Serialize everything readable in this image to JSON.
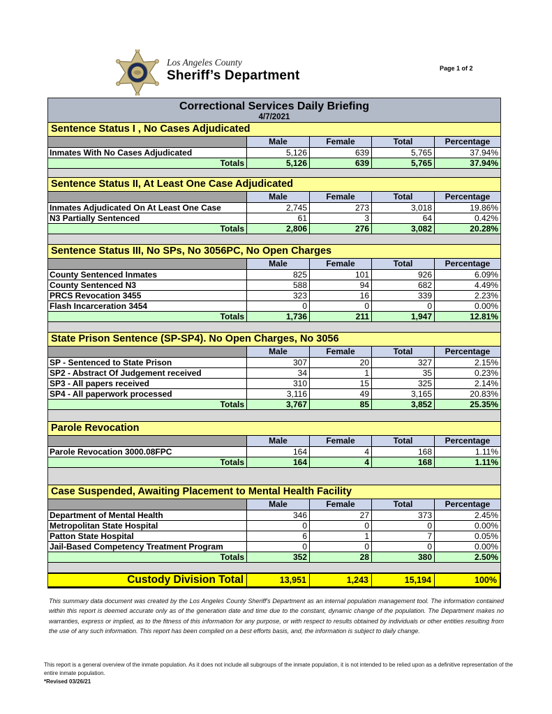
{
  "header": {
    "agency_line1": "Los Angeles County",
    "agency_line2": "Sheriff’s Department",
    "badge_icon": "sheriff-star-badge",
    "page_label": "Page 1 of 2"
  },
  "report": {
    "title": "Correctional Services Daily Briefing",
    "date": "4/7/2021",
    "columns": [
      "Male",
      "Female",
      "Total",
      "Percentage"
    ],
    "totals_label": "Totals",
    "sections": [
      {
        "title": "Sentence Status I , No Cases Adjudicated",
        "rows": [
          {
            "label": "Inmates With No Cases Adjudicated",
            "values": [
              "5,126",
              "639",
              "5,765",
              "37.94%"
            ]
          }
        ],
        "totals": [
          "5,126",
          "639",
          "5,765",
          "37.94%"
        ]
      },
      {
        "title": "Sentence Status II, At Least One Case Adjudicated",
        "rows": [
          {
            "label": "Inmates Adjudicated On At Least One Case",
            "values": [
              "2,745",
              "273",
              "3,018",
              "19.86%"
            ]
          },
          {
            "label": "N3 Partially Sentenced",
            "values": [
              "61",
              "3",
              "64",
              "0.42%"
            ]
          }
        ],
        "totals": [
          "2,806",
          "276",
          "3,082",
          "20.28%"
        ]
      },
      {
        "title": "Sentence Status III, No SPs, No 3056PC, No Open Charges",
        "rows": [
          {
            "label": "County Sentenced Inmates",
            "values": [
              "825",
              "101",
              "926",
              "6.09%"
            ]
          },
          {
            "label": "County Sentenced N3",
            "values": [
              "588",
              "94",
              "682",
              "4.49%"
            ]
          },
          {
            "label": "PRCS Revocation 3455",
            "values": [
              "323",
              "16",
              "339",
              "2.23%"
            ]
          },
          {
            "label": "Flash Incarceration 3454",
            "values": [
              "0",
              "0",
              "0",
              "0.00%"
            ]
          }
        ],
        "totals": [
          "1,736",
          "211",
          "1,947",
          "12.81%"
        ]
      },
      {
        "title": "State Prison Sentence (SP-SP4). No Open Charges, No 3056",
        "rows": [
          {
            "label": "SP - Sentenced to State Prison",
            "values": [
              "307",
              "20",
              "327",
              "2.15%"
            ]
          },
          {
            "label": "SP2 - Abstract Of Judgement received",
            "values": [
              "34",
              "1",
              "35",
              "0.23%"
            ]
          },
          {
            "label": "SP3 - All papers received",
            "values": [
              "310",
              "15",
              "325",
              "2.14%"
            ]
          },
          {
            "label": "SP4 - All paperwork processed",
            "values": [
              "3,116",
              "49",
              "3,165",
              "20.83%"
            ]
          }
        ],
        "totals": [
          "3,767",
          "85",
          "3,852",
          "25.35%"
        ]
      },
      {
        "title": "Parole Revocation",
        "rows": [
          {
            "label": "Parole Revocation 3000.08FPC",
            "values": [
              "164",
              "4",
              "168",
              "1.11%"
            ]
          }
        ],
        "totals": [
          "164",
          "4",
          "168",
          "1.11%"
        ]
      },
      {
        "title": "Case Suspended, Awaiting Placement to Mental Health Facility",
        "rows": [
          {
            "label": "Department of Mental Health",
            "values": [
              "346",
              "27",
              "373",
              "2.45%"
            ]
          },
          {
            "label": "Metropolitan State Hospital",
            "values": [
              "0",
              "0",
              "0",
              "0.00%"
            ]
          },
          {
            "label": "Patton State Hospital",
            "values": [
              "6",
              "1",
              "7",
              "0.05%"
            ]
          },
          {
            "label": "Jail-Based Competency Treatment Program",
            "values": [
              "0",
              "0",
              "0",
              "0.00%"
            ]
          }
        ],
        "totals": [
          "352",
          "28",
          "380",
          "2.50%"
        ]
      }
    ],
    "grand_total": {
      "label": "Custody Division Total",
      "values": [
        "13,951",
        "1,243",
        "15,194",
        "100%"
      ]
    }
  },
  "colors": {
    "title_bar": "#b2b9c7",
    "section_header": "#ffff99",
    "column_header": "#ccd5ea",
    "column_header_label_cell": "#a3a3a3",
    "totals_row": "#ccffcc",
    "grand_total_row": "#ffff00",
    "gap_background": "#d8d8d8"
  },
  "footer": {
    "disclaimer": "This summary data document was created by the Los Angeles County Sheriff's Department as an internal population management tool.  The information contained within this report is deemed accurate only as of the generation date and time due to the constant, dynamic change of the population.  The Department makes no warranties, express or implied, as to the fitness of this information for any purpose, or with respect to results obtained by individuals or other entities resulting from the use of any such information.  This report has been compiled on a best efforts basis, and, the information is subject to daily change.",
    "note": "This report is a general overview of the inmate population.  As it does not include all subgroups of the inmate population, it is not intended to be relied upon as a definitive representation of the entire inmate population.",
    "revision": "*Revised 03/26/21"
  }
}
